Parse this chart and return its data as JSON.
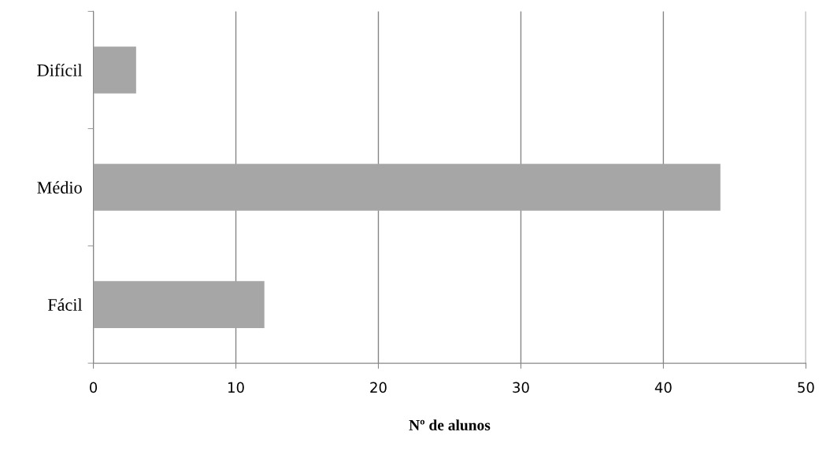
{
  "chart_data": {
    "type": "bar",
    "orientation": "horizontal",
    "xlabel": "Nº de alunos",
    "categories": [
      "Difícil",
      "Médio",
      "Fácil"
    ],
    "values": [
      3,
      44,
      12
    ],
    "color": "#a6a6a6",
    "xlim": [
      0,
      50
    ],
    "xticks": [
      0,
      10,
      20,
      30,
      40,
      50
    ],
    "grid": "x",
    "legend": false
  }
}
